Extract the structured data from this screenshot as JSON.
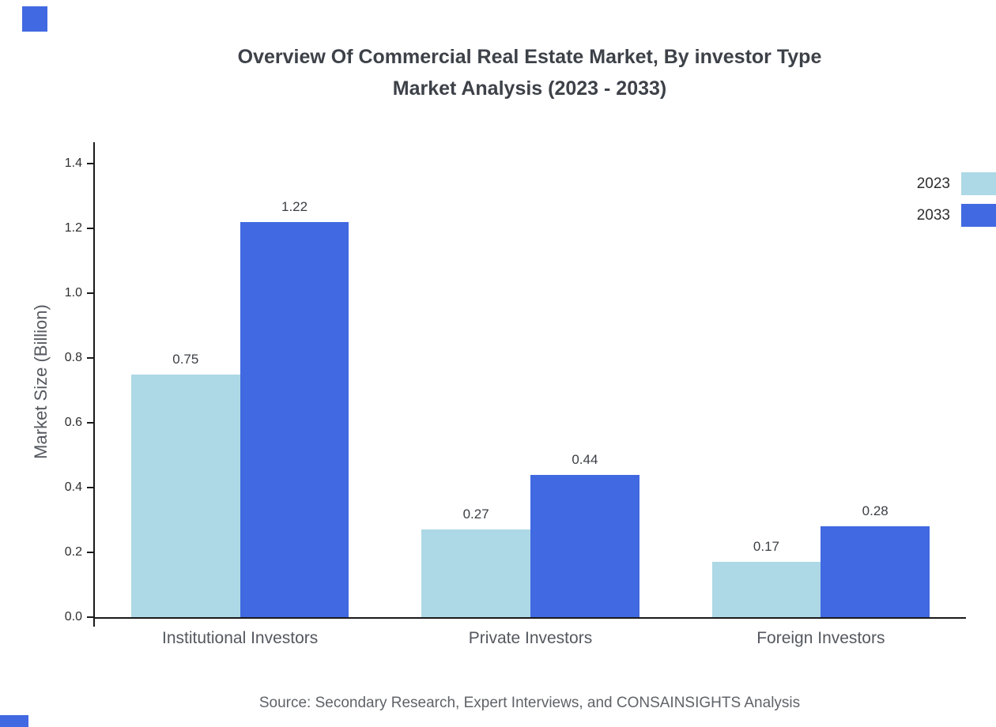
{
  "title": {
    "line1": "Overview Of Commercial Real Estate Market, By investor Type",
    "line2": "Market Analysis (2023 - 2033)"
  },
  "source": "Source: Secondary Research, Expert Interviews, and CONSAINSIGHTS Analysis",
  "accent_color": "#4169E1",
  "chart_data": {
    "type": "bar",
    "title": "Overview Of Commercial Real Estate Market, By investor Type Market Analysis (2023 - 2033)",
    "xlabel": "",
    "ylabel": "Market Size (Billion)",
    "categories": [
      "Institutional Investors",
      "Private Investors",
      "Foreign Investors"
    ],
    "series": [
      {
        "name": "2023",
        "color": "#ADD8E6",
        "values": [
          0.75,
          0.27,
          0.17
        ]
      },
      {
        "name": "2033",
        "color": "#4169E1",
        "values": [
          1.22,
          0.44,
          0.28
        ]
      }
    ],
    "ylim": [
      0,
      1.466
    ],
    "yticks": [
      0.0,
      0.2,
      0.4,
      0.6,
      0.8,
      1.0,
      1.2,
      1.4
    ],
    "grid": false,
    "legend_position": "top-right"
  }
}
